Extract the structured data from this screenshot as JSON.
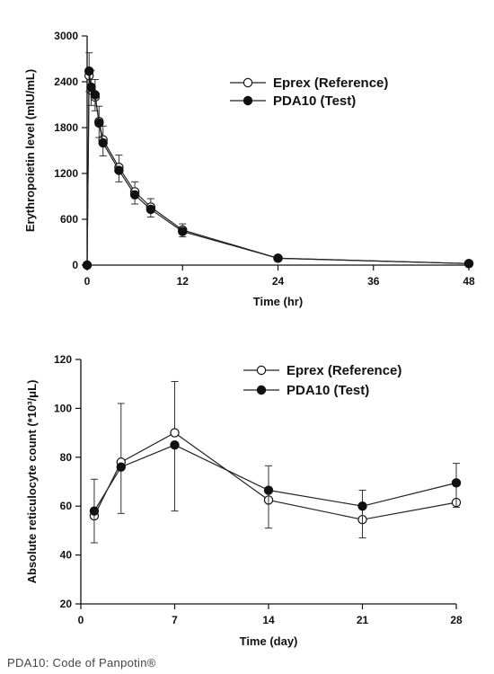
{
  "chart_data": [
    {
      "type": "line",
      "title": "",
      "xlabel": "Time (hr)",
      "ylabel": "Erythropoietin level (mIU/mL)",
      "xlim": [
        0,
        48
      ],
      "ylim": [
        0,
        3000
      ],
      "xticks": [
        0,
        12,
        24,
        36,
        48
      ],
      "yticks": [
        0,
        600,
        1200,
        1800,
        2400,
        3000
      ],
      "legend_position": "top-right",
      "grid": false,
      "series": [
        {
          "name": "Eprex (Reference)",
          "marker": "open-circle",
          "x": [
            0,
            0.25,
            0.5,
            1,
            1.5,
            2,
            4,
            6,
            8,
            12,
            24,
            48
          ],
          "y": [
            0,
            2480,
            2290,
            2200,
            1880,
            1640,
            1280,
            960,
            760,
            460,
            90,
            20
          ],
          "error": [
            0,
            300,
            260,
            230,
            200,
            180,
            160,
            130,
            110,
            80,
            20,
            10
          ]
        },
        {
          "name": "PDA10 (Test)",
          "marker": "filled-circle",
          "x": [
            0,
            0.25,
            0.5,
            1,
            1.5,
            2,
            4,
            6,
            8,
            12,
            24,
            48
          ],
          "y": [
            0,
            2540,
            2330,
            2230,
            1860,
            1600,
            1240,
            920,
            730,
            440,
            90,
            20
          ],
          "error": [
            0,
            270,
            240,
            210,
            190,
            170,
            150,
            120,
            100,
            70,
            20,
            10
          ]
        }
      ]
    },
    {
      "type": "line",
      "title": "",
      "xlabel": "Time (day)",
      "ylabel": "Absolute reticulocyte count (*10³/μL)",
      "xlim": [
        0,
        28
      ],
      "ylim": [
        20,
        120
      ],
      "xticks": [
        0,
        7,
        14,
        21,
        28
      ],
      "yticks": [
        20,
        40,
        60,
        80,
        100,
        120
      ],
      "legend_position": "top-right",
      "grid": false,
      "series": [
        {
          "name": "Eprex (Reference)",
          "marker": "open-circle",
          "x": [
            1,
            3,
            7,
            14,
            21,
            28
          ],
          "y": [
            56,
            78,
            90,
            62.5,
            54.5,
            61.5
          ],
          "error": [
            15,
            24,
            21,
            14,
            12,
            16
          ]
        },
        {
          "name": "PDA10 (Test)",
          "marker": "filled-circle",
          "x": [
            1,
            3,
            7,
            14,
            21,
            28
          ],
          "y": [
            58,
            76,
            85,
            66.5,
            60,
            69.5
          ],
          "error": [
            13,
            19,
            27,
            15.5,
            13,
            10
          ]
        }
      ]
    }
  ],
  "footnote": "PDA10: Code of Panpotin®"
}
